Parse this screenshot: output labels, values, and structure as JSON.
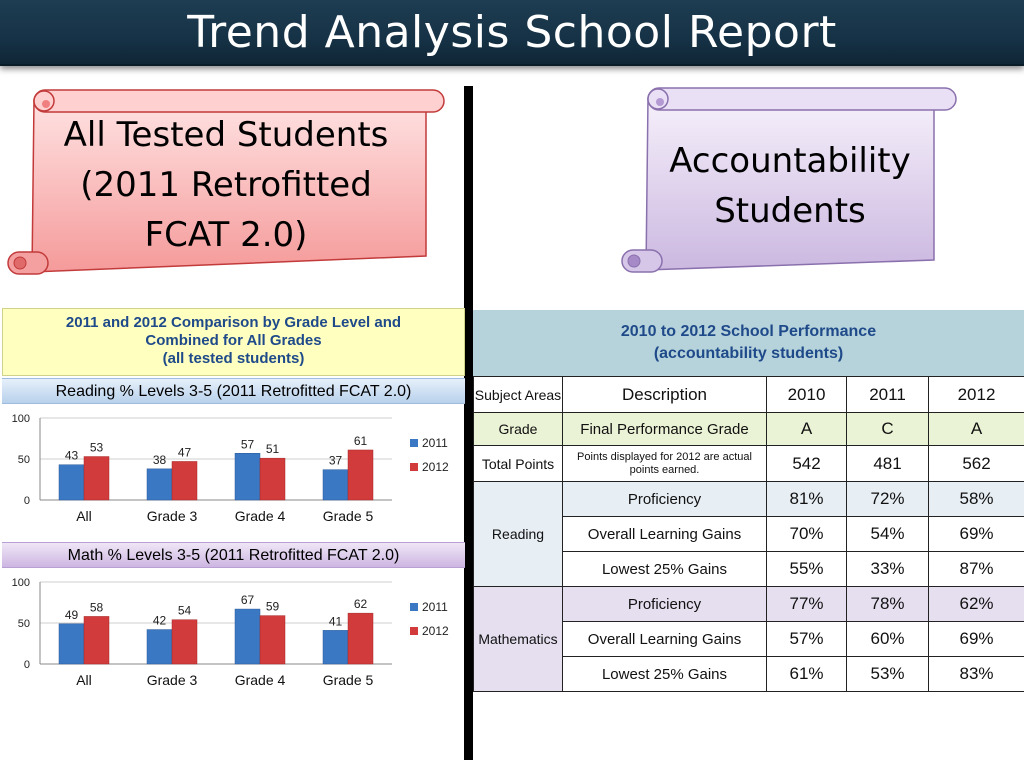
{
  "title": "Trend Analysis School Report",
  "left_scroll": {
    "lines": [
      "All Tested Students",
      "(2011 Retrofitted",
      "FCAT 2.0)"
    ]
  },
  "right_scroll": {
    "lines": [
      "Accountability",
      "Students"
    ]
  },
  "colors": {
    "series_2011": "#3b78c4",
    "series_2012": "#d23b3b",
    "title_bar": "#163246"
  },
  "left_panel": {
    "header_lines": [
      "2011 and 2012 Comparison by Grade Level and",
      "Combined for All Grades",
      "(all tested students)"
    ]
  },
  "chart_data": [
    {
      "type": "bar",
      "title": "Reading % Levels 3-5 (2011 Retrofitted FCAT 2.0)",
      "categories": [
        "All",
        "Grade 3",
        "Grade 4",
        "Grade 5"
      ],
      "series": [
        {
          "name": "2011",
          "values": [
            43,
            38,
            57,
            37
          ]
        },
        {
          "name": "2012",
          "values": [
            53,
            47,
            51,
            61
          ]
        }
      ],
      "ylim": [
        0,
        100
      ],
      "yticks": [
        "0",
        "50",
        "100"
      ],
      "grid": true,
      "legend": "right"
    },
    {
      "type": "bar",
      "title": "Math % Levels 3-5 (2011 Retrofitted FCAT 2.0)",
      "categories": [
        "All",
        "Grade 3",
        "Grade 4",
        "Grade 5"
      ],
      "series": [
        {
          "name": "2011",
          "values": [
            49,
            42,
            67,
            41
          ]
        },
        {
          "name": "2012",
          "values": [
            58,
            54,
            59,
            62
          ]
        }
      ],
      "ylim": [
        0,
        100
      ],
      "yticks": [
        "0",
        "50",
        "100"
      ],
      "grid": true,
      "legend": "right"
    },
    {
      "type": "table",
      "title_lines": [
        "2010 to 2012 School Performance",
        "(accountability students)"
      ],
      "columns": [
        "Subject Areas",
        "Description",
        "2010",
        "2011",
        "2012"
      ],
      "grade": {
        "subject": "Grade",
        "description": "Final Performance Grade",
        "values": [
          "A",
          "C",
          "A"
        ]
      },
      "total_points": {
        "subject": "Total Points",
        "description": "Points displayed for 2012 are actual points earned.",
        "values": [
          "542",
          "481",
          "562"
        ]
      },
      "groups": [
        {
          "subject": "Reading",
          "rows": [
            {
              "description": "Proficiency",
              "values": [
                "81%",
                "72%",
                "58%"
              ]
            },
            {
              "description": "Overall Learning Gains",
              "values": [
                "70%",
                "54%",
                "69%"
              ]
            },
            {
              "description": "Lowest 25% Gains",
              "values": [
                "55%",
                "33%",
                "87%"
              ]
            }
          ]
        },
        {
          "subject": "Mathematics",
          "rows": [
            {
              "description": "Proficiency",
              "values": [
                "77%",
                "78%",
                "62%"
              ]
            },
            {
              "description": "Overall Learning Gains",
              "values": [
                "57%",
                "60%",
                "69%"
              ]
            },
            {
              "description": "Lowest 25% Gains",
              "values": [
                "61%",
                "53%",
                "83%"
              ]
            }
          ]
        }
      ]
    }
  ]
}
